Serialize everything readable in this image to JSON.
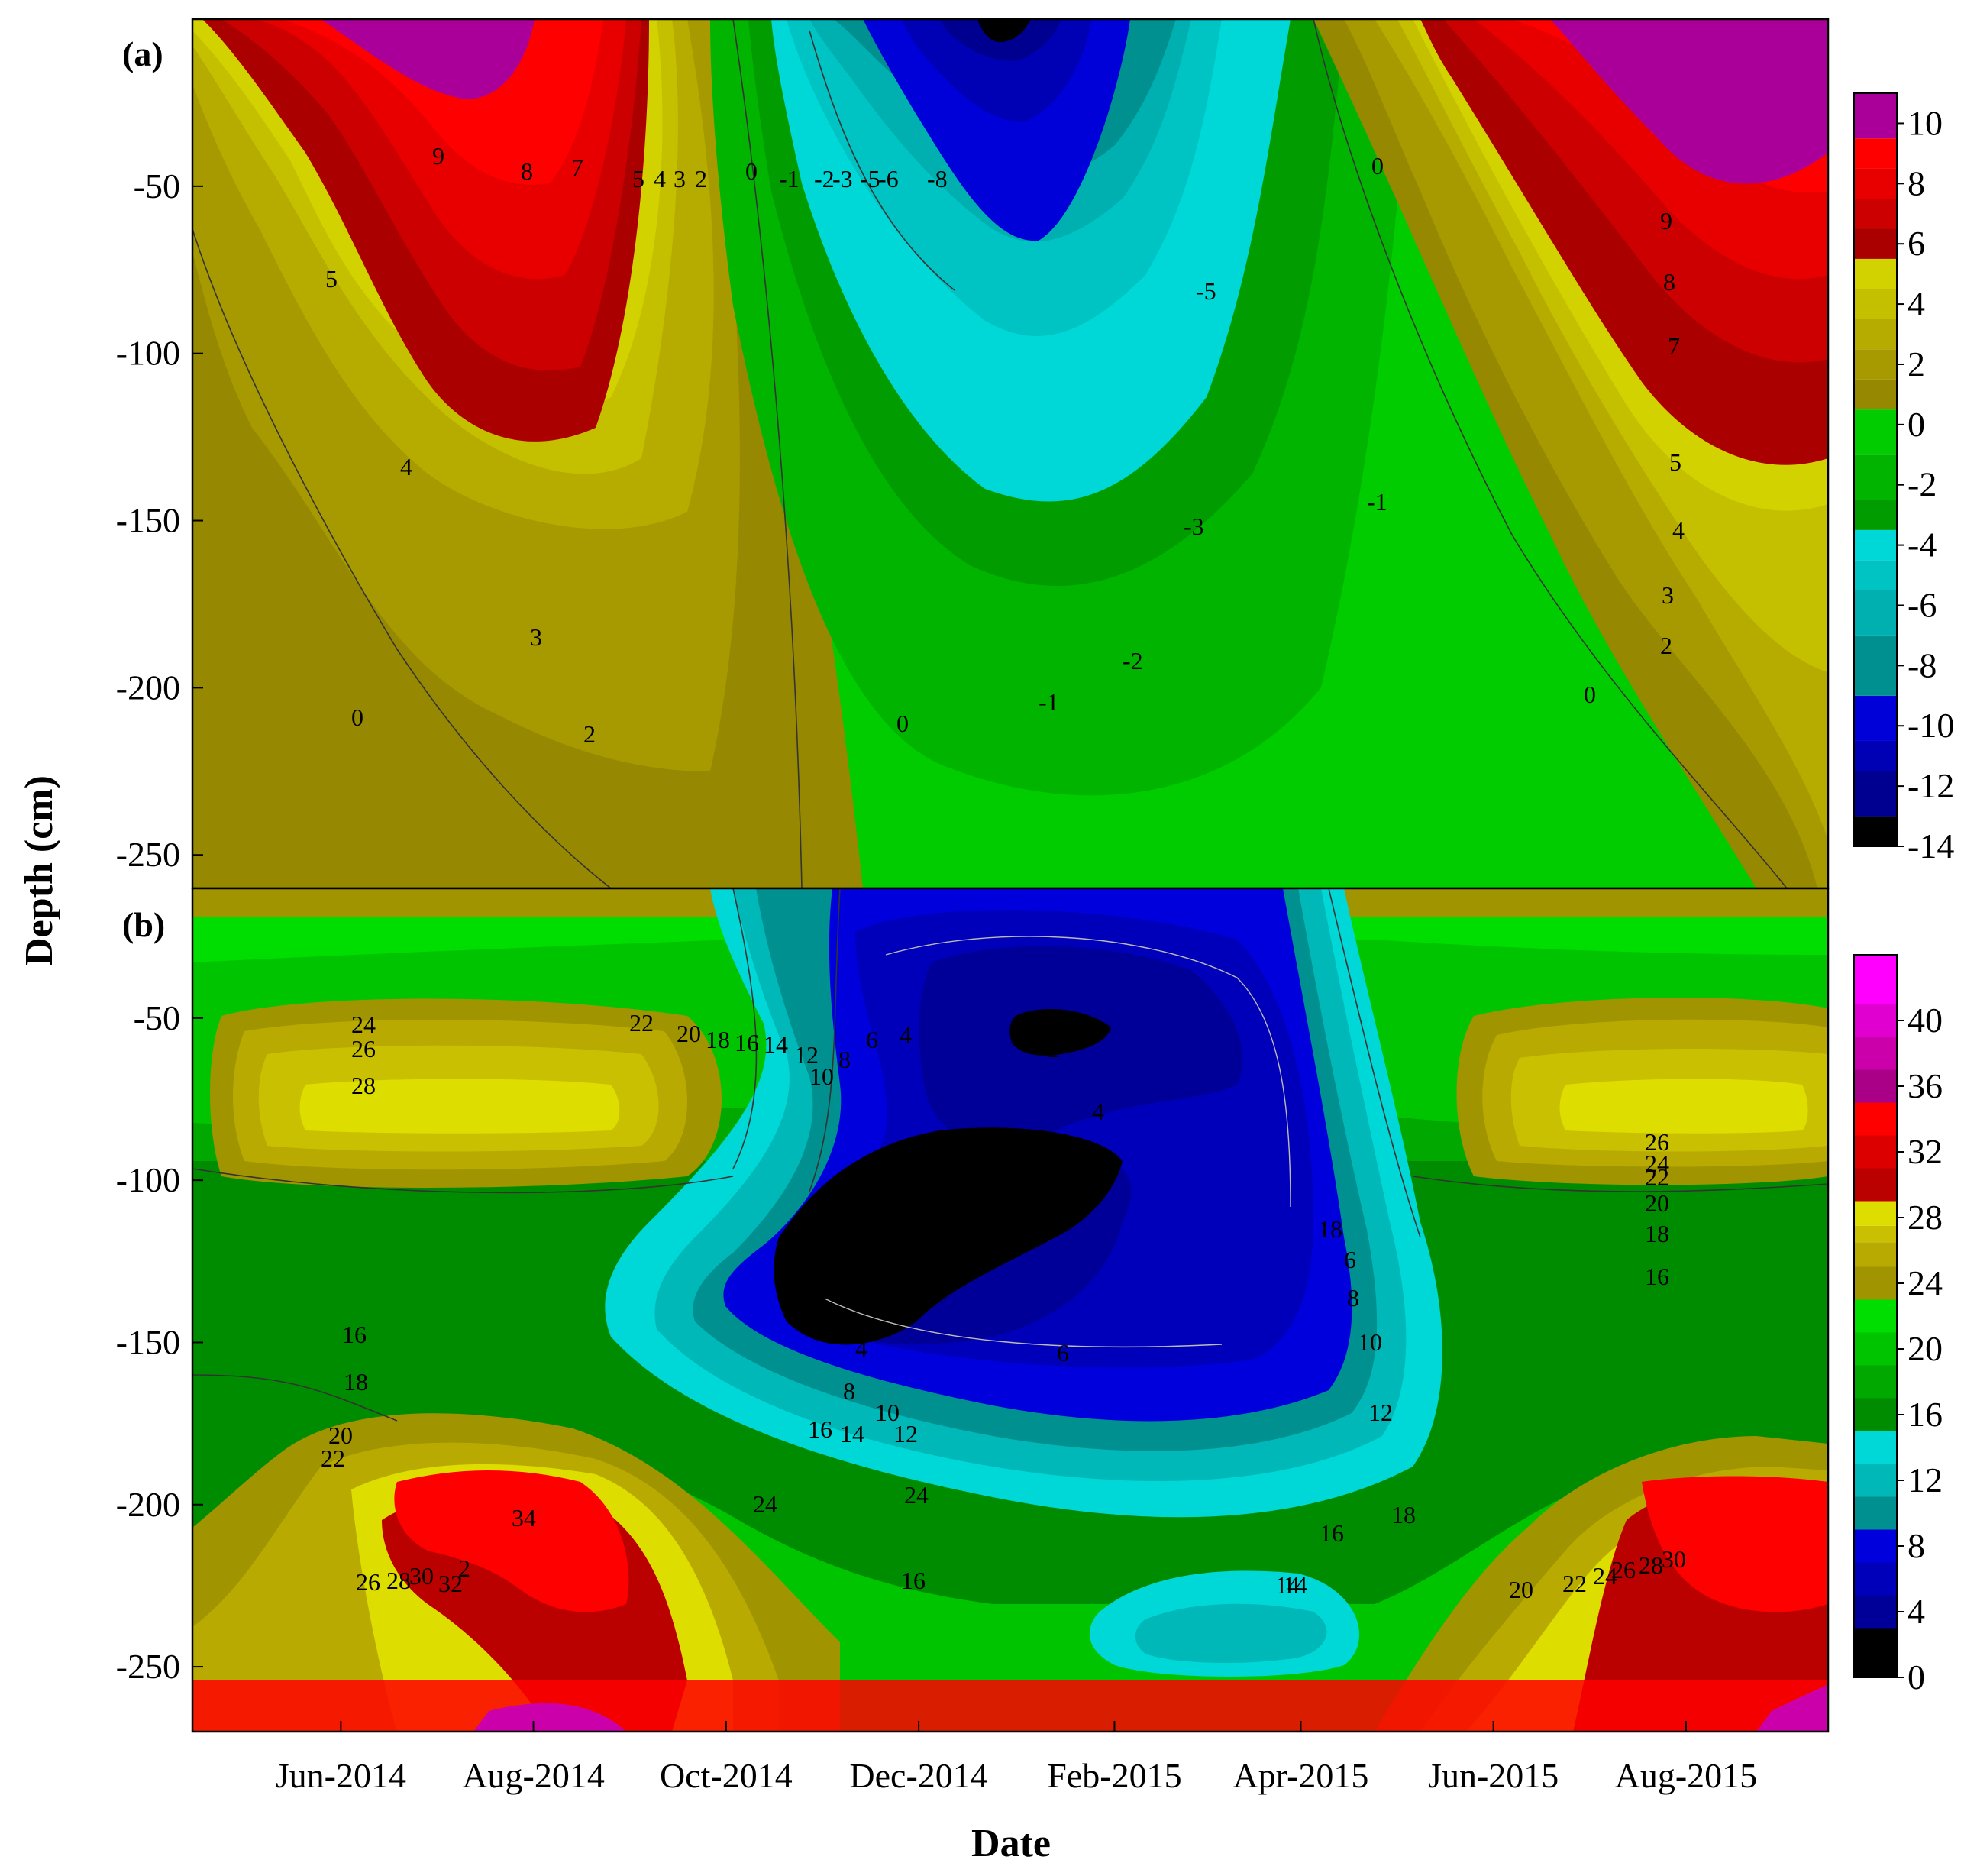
{
  "xlabel": "Date",
  "ylabel": "Depth (cm)",
  "x_ticks": [
    "Jun-2014",
    "Aug-2014",
    "Oct-2014",
    "Dec-2014",
    "Feb-2015",
    "Apr-2015",
    "Jun-2015",
    "Aug-2015"
  ],
  "chart_data": [
    {
      "type": "heatmap",
      "panel_label": "(a)",
      "x_range": [
        "2014-04-15",
        "2015-09-15"
      ],
      "ylim": [
        -260,
        0
      ],
      "y_ticks": [
        -50,
        -100,
        -150,
        -200,
        -250
      ],
      "colorbar": {
        "min": -14,
        "max": 11,
        "tick_labels": [
          "10",
          "8",
          "6",
          "4",
          "2",
          "0",
          "-2",
          "-4",
          "-6",
          "-8",
          "-10",
          "-12",
          "-14"
        ],
        "colors": [
          {
            "value": 10,
            "color": "#aa0099"
          },
          {
            "value": 9,
            "color": "#ff0000"
          },
          {
            "value": 8,
            "color": "#e80000"
          },
          {
            "value": 7,
            "color": "#cc0000"
          },
          {
            "value": 6,
            "color": "#aa0000"
          },
          {
            "value": 5,
            "color": "#d2d200"
          },
          {
            "value": 4,
            "color": "#c4c000"
          },
          {
            "value": 3,
            "color": "#b6ac00"
          },
          {
            "value": 2,
            "color": "#a69a00"
          },
          {
            "value": 1,
            "color": "#968800"
          },
          {
            "value": 0,
            "color": "#00cc00"
          },
          {
            "value": -2,
            "color": "#00b400"
          },
          {
            "value": -3,
            "color": "#009c00"
          },
          {
            "value": -4,
            "color": "#00d8d8"
          },
          {
            "value": -5,
            "color": "#00c4c4"
          },
          {
            "value": -6,
            "color": "#00b0b0"
          },
          {
            "value": -8,
            "color": "#009090"
          },
          {
            "value": -10,
            "color": "#0000d8"
          },
          {
            "value": -11,
            "color": "#0000b4"
          },
          {
            "value": -12,
            "color": "#000090"
          },
          {
            "value": -14,
            "color": "#000000"
          }
        ]
      },
      "contour_labels": [
        "9",
        "8",
        "7",
        "5",
        "4",
        "3",
        "2",
        "0",
        "-1",
        "-2",
        "-3",
        "-5",
        "-6",
        "-8",
        "5",
        "4",
        "3",
        "2",
        "0",
        "0",
        "0",
        "-1",
        "-2",
        "-3",
        "-5",
        "-1",
        "9",
        "8",
        "7",
        "5",
        "4",
        "3",
        "2",
        "0"
      ],
      "regions": [
        {
          "name": "summer-2014-warm",
          "date": "2014-07-20",
          "depth": -20,
          "value": 10
        },
        {
          "name": "winter-2014-cold",
          "date": "2015-01-05",
          "depth": 0,
          "value": -14
        },
        {
          "name": "summer-2015-warm",
          "date": "2015-08-01",
          "depth": -20,
          "value": 10
        }
      ]
    },
    {
      "type": "heatmap",
      "panel_label": "(b)",
      "x_range": [
        "2014-04-15",
        "2015-09-15"
      ],
      "ylim": [
        -270,
        -10
      ],
      "y_ticks": [
        -50,
        -100,
        -150,
        -200,
        -250
      ],
      "colorbar": {
        "min": 0,
        "max": 44,
        "tick_labels": [
          "40",
          "36",
          "32",
          "28",
          "24",
          "20",
          "16",
          "12",
          "8",
          "4",
          "0"
        ],
        "colors": [
          {
            "value": 42,
            "color": "#ff00ff"
          },
          {
            "value": 40,
            "color": "#e000d0"
          },
          {
            "value": 38,
            "color": "#cc00aa"
          },
          {
            "value": 36,
            "color": "#aa0088"
          },
          {
            "value": 34,
            "color": "#ff0000"
          },
          {
            "value": 32,
            "color": "#dd0000"
          },
          {
            "value": 30,
            "color": "#bb0000"
          },
          {
            "value": 28,
            "color": "#dddd00"
          },
          {
            "value": 27,
            "color": "#c8c000"
          },
          {
            "value": 26,
            "color": "#b8aa00"
          },
          {
            "value": 24,
            "color": "#a09400"
          },
          {
            "value": 22,
            "color": "#00dd00"
          },
          {
            "value": 20,
            "color": "#00c400"
          },
          {
            "value": 18,
            "color": "#00a800"
          },
          {
            "value": 16,
            "color": "#008c00"
          },
          {
            "value": 14,
            "color": "#00d8d8"
          },
          {
            "value": 12,
            "color": "#00b8b8"
          },
          {
            "value": 10,
            "color": "#009090"
          },
          {
            "value": 8,
            "color": "#0000dd"
          },
          {
            "value": 6,
            "color": "#0000bb"
          },
          {
            "value": 4,
            "color": "#000099"
          },
          {
            "value": 2,
            "color": "#000000"
          }
        ]
      },
      "contour_labels": [
        "24",
        "26",
        "28",
        "22",
        "20",
        "18",
        "16",
        "14",
        "12",
        "10",
        "8",
        "6",
        "4",
        "2",
        "4",
        "16",
        "18",
        "20",
        "22",
        "34",
        "24",
        "26",
        "28",
        "30",
        "32",
        "2",
        "4",
        "6",
        "8",
        "10",
        "12",
        "14",
        "16",
        "24",
        "16",
        "18",
        "6",
        "8",
        "10",
        "12",
        "14",
        "18",
        "16",
        "14",
        "26",
        "24",
        "22",
        "20",
        "18",
        "16",
        "20",
        "22",
        "24",
        "26",
        "28",
        "30"
      ],
      "regions": [
        {
          "name": "summer-2014-near-surface-warm",
          "date": "2014-07-15",
          "depth": -90,
          "value": 28
        },
        {
          "name": "winter-core-lowest",
          "date": "2014-12-20",
          "depth": -130,
          "value": 0
        },
        {
          "name": "summer-2014-deep-warm",
          "date": "2014-08-15",
          "depth": -215,
          "value": 34
        },
        {
          "name": "summer-2015-deep-warm",
          "date": "2015-08-25",
          "depth": -215,
          "value": 34
        },
        {
          "name": "spring-2015-deep-cool",
          "date": "2015-03-20",
          "depth": -245,
          "value": 12
        }
      ]
    }
  ]
}
